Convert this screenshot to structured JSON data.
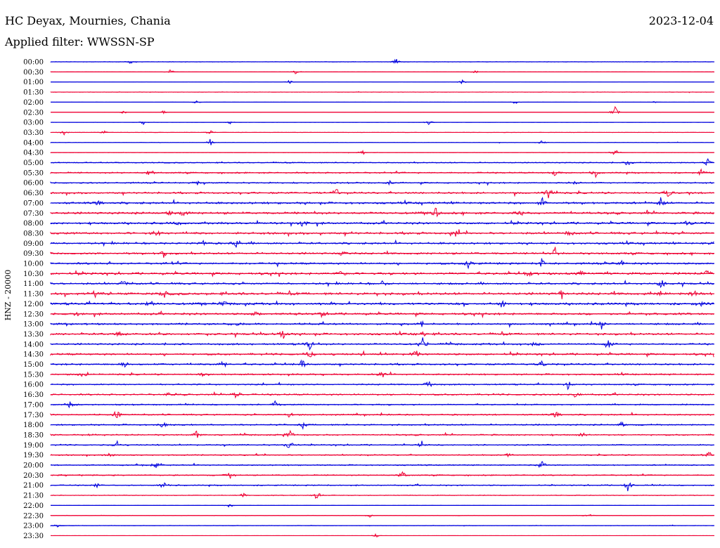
{
  "header": {
    "station": "HC Deyax, Mournies, Chania",
    "date": "2023-12-04",
    "filter": "Applied filter: WWSSN-SP"
  },
  "chart_data": {
    "type": "line",
    "title": "HC Deyax, Mournies, Chania",
    "subtitle": "Applied filter: WWSSN-SP",
    "ylabel": "HNZ - 20000",
    "xlabel": "",
    "grid": false,
    "colors": [
      "#0000dd",
      "#ee0033"
    ],
    "rows": [
      {
        "label": "00:00",
        "activity": 0.18,
        "events": [
          [
            0.52,
            6
          ],
          [
            0.12,
            4
          ]
        ]
      },
      {
        "label": "00:30",
        "activity": 0.08,
        "events": [
          [
            0.18,
            5
          ],
          [
            0.37,
            6
          ],
          [
            0.64,
            3
          ]
        ]
      },
      {
        "label": "01:00",
        "activity": 0.06,
        "events": [
          [
            0.36,
            4
          ],
          [
            0.62,
            6
          ]
        ]
      },
      {
        "label": "01:30",
        "activity": 0.15,
        "events": []
      },
      {
        "label": "02:00",
        "activity": 0.05,
        "events": [
          [
            0.22,
            4
          ],
          [
            0.7,
            4
          ],
          [
            0.91,
            3
          ]
        ]
      },
      {
        "label": "02:30",
        "activity": 0.08,
        "events": [
          [
            0.85,
            12
          ],
          [
            0.11,
            3
          ],
          [
            0.17,
            3
          ]
        ]
      },
      {
        "label": "03:00",
        "activity": 0.09,
        "events": [
          [
            0.14,
            4
          ],
          [
            0.27,
            4
          ],
          [
            0.57,
            5
          ]
        ]
      },
      {
        "label": "03:30",
        "activity": 0.14,
        "events": [
          [
            0.02,
            5
          ],
          [
            0.08,
            4
          ],
          [
            0.24,
            4
          ]
        ]
      },
      {
        "label": "04:00",
        "activity": 0.18,
        "events": [
          [
            0.24,
            7
          ],
          [
            0.74,
            5
          ]
        ]
      },
      {
        "label": "04:30",
        "activity": 0.17,
        "events": [
          [
            0.47,
            6
          ],
          [
            0.85,
            11
          ]
        ]
      },
      {
        "label": "05:00",
        "activity": 0.4,
        "events": [
          [
            0.87,
            7
          ],
          [
            0.99,
            6
          ]
        ]
      },
      {
        "label": "05:30",
        "activity": 0.55,
        "events": [
          [
            0.15,
            7
          ],
          [
            0.76,
            7
          ],
          [
            0.82,
            8
          ],
          [
            0.98,
            6
          ]
        ]
      },
      {
        "label": "06:00",
        "activity": 0.55,
        "events": [
          [
            0.22,
            5
          ],
          [
            0.51,
            5
          ],
          [
            0.79,
            6
          ]
        ]
      },
      {
        "label": "06:30",
        "activity": 0.7,
        "events": [
          [
            0.43,
            12
          ],
          [
            0.75,
            8
          ],
          [
            0.93,
            9
          ]
        ]
      },
      {
        "label": "07:00",
        "activity": 0.8,
        "events": [
          [
            0.07,
            6
          ],
          [
            0.74,
            13
          ],
          [
            0.92,
            12
          ]
        ]
      },
      {
        "label": "07:30",
        "activity": 0.85,
        "events": [
          [
            0.18,
            6
          ],
          [
            0.2,
            7
          ],
          [
            0.58,
            11
          ],
          [
            0.71,
            7
          ]
        ]
      },
      {
        "label": "08:00",
        "activity": 0.8,
        "events": [
          [
            0.19,
            7
          ],
          [
            0.38,
            12
          ],
          [
            0.96,
            5
          ]
        ]
      },
      {
        "label": "08:30",
        "activity": 0.85,
        "events": [
          [
            0.16,
            8
          ],
          [
            0.61,
            6
          ],
          [
            0.78,
            6
          ]
        ]
      },
      {
        "label": "09:00",
        "activity": 0.75,
        "events": [
          [
            0.23,
            7
          ],
          [
            0.28,
            6
          ],
          [
            1.0,
            5
          ]
        ]
      },
      {
        "label": "09:30",
        "activity": 0.75,
        "events": [
          [
            0.17,
            7
          ],
          [
            0.44,
            8
          ],
          [
            0.76,
            9
          ]
        ]
      },
      {
        "label": "10:00",
        "activity": 0.75,
        "events": [
          [
            0.63,
            9
          ],
          [
            0.74,
            10
          ],
          [
            0.86,
            6
          ]
        ]
      },
      {
        "label": "10:30",
        "activity": 0.85,
        "events": [
          [
            0.44,
            6
          ],
          [
            0.72,
            7
          ],
          [
            0.8,
            6
          ],
          [
            0.99,
            8
          ]
        ]
      },
      {
        "label": "11:00",
        "activity": 0.75,
        "events": [
          [
            0.11,
            6
          ],
          [
            0.5,
            6
          ],
          [
            0.92,
            8
          ]
        ]
      },
      {
        "label": "11:30",
        "activity": 0.95,
        "events": [
          [
            0.17,
            7
          ],
          [
            0.77,
            9
          ],
          [
            0.92,
            7
          ],
          [
            0.97,
            9
          ]
        ]
      },
      {
        "label": "12:00",
        "activity": 0.85,
        "events": [
          [
            0.15,
            6
          ],
          [
            0.26,
            9
          ],
          [
            0.68,
            7
          ],
          [
            0.98,
            6
          ]
        ]
      },
      {
        "label": "12:30",
        "activity": 0.8,
        "events": [
          [
            0.04,
            6
          ],
          [
            0.31,
            6
          ],
          [
            0.41,
            7
          ]
        ]
      },
      {
        "label": "13:00",
        "activity": 0.7,
        "events": [
          [
            0.28,
            6
          ],
          [
            0.56,
            6
          ],
          [
            0.83,
            6
          ]
        ]
      },
      {
        "label": "13:30",
        "activity": 0.8,
        "events": [
          [
            0.1,
            7
          ],
          [
            0.35,
            8
          ],
          [
            0.56,
            7
          ]
        ]
      },
      {
        "label": "14:00",
        "activity": 0.7,
        "events": [
          [
            0.39,
            11
          ],
          [
            0.56,
            12
          ],
          [
            0.73,
            7
          ],
          [
            0.84,
            9
          ]
        ]
      },
      {
        "label": "14:30",
        "activity": 0.75,
        "events": [
          [
            0.39,
            8
          ],
          [
            0.55,
            8
          ]
        ]
      },
      {
        "label": "15:00",
        "activity": 0.65,
        "events": [
          [
            0.11,
            8
          ],
          [
            0.26,
            7
          ],
          [
            0.38,
            8
          ],
          [
            0.74,
            6
          ]
        ]
      },
      {
        "label": "15:30",
        "activity": 0.6,
        "events": [
          [
            0.05,
            8
          ],
          [
            0.23,
            7
          ],
          [
            0.5,
            6
          ]
        ]
      },
      {
        "label": "16:00",
        "activity": 0.55,
        "events": [
          [
            0.57,
            10
          ],
          [
            0.78,
            11
          ]
        ]
      },
      {
        "label": "16:30",
        "activity": 0.6,
        "events": [
          [
            0.18,
            8
          ],
          [
            0.28,
            7
          ],
          [
            0.79,
            7
          ]
        ]
      },
      {
        "label": "17:00",
        "activity": 0.5,
        "events": [
          [
            0.03,
            9
          ],
          [
            0.34,
            9
          ]
        ]
      },
      {
        "label": "17:30",
        "activity": 0.55,
        "events": [
          [
            0.1,
            12
          ],
          [
            0.36,
            7
          ],
          [
            0.76,
            9
          ]
        ]
      },
      {
        "label": "18:00",
        "activity": 0.55,
        "events": [
          [
            0.17,
            8
          ],
          [
            0.38,
            7
          ],
          [
            0.86,
            6
          ]
        ]
      },
      {
        "label": "18:30",
        "activity": 0.55,
        "events": [
          [
            0.22,
            7
          ],
          [
            0.36,
            9
          ],
          [
            0.8,
            6
          ]
        ]
      },
      {
        "label": "19:00",
        "activity": 0.5,
        "events": [
          [
            0.1,
            6
          ],
          [
            0.36,
            9
          ],
          [
            0.56,
            9
          ]
        ]
      },
      {
        "label": "19:30",
        "activity": 0.45,
        "events": [
          [
            0.09,
            5
          ],
          [
            0.69,
            6
          ],
          [
            0.99,
            10
          ]
        ]
      },
      {
        "label": "20:00",
        "activity": 0.45,
        "events": [
          [
            0.16,
            8
          ],
          [
            0.74,
            9
          ]
        ]
      },
      {
        "label": "20:30",
        "activity": 0.45,
        "events": [
          [
            0.27,
            9
          ],
          [
            0.53,
            9
          ]
        ]
      },
      {
        "label": "21:00",
        "activity": 0.45,
        "events": [
          [
            0.07,
            7
          ],
          [
            0.17,
            9
          ],
          [
            0.87,
            13
          ]
        ]
      },
      {
        "label": "21:30",
        "activity": 0.3,
        "events": [
          [
            0.4,
            8
          ],
          [
            0.29,
            4
          ]
        ]
      },
      {
        "label": "22:00",
        "activity": 0.08,
        "events": [
          [
            0.27,
            4
          ]
        ]
      },
      {
        "label": "22:30",
        "activity": 0.2,
        "events": [
          [
            0.48,
            4
          ],
          [
            0.81,
            4
          ]
        ]
      },
      {
        "label": "23:00",
        "activity": 0.2,
        "events": [
          [
            0.01,
            4
          ]
        ]
      },
      {
        "label": "23:30",
        "activity": 0.04,
        "events": [
          [
            0.49,
            4
          ]
        ]
      }
    ]
  }
}
